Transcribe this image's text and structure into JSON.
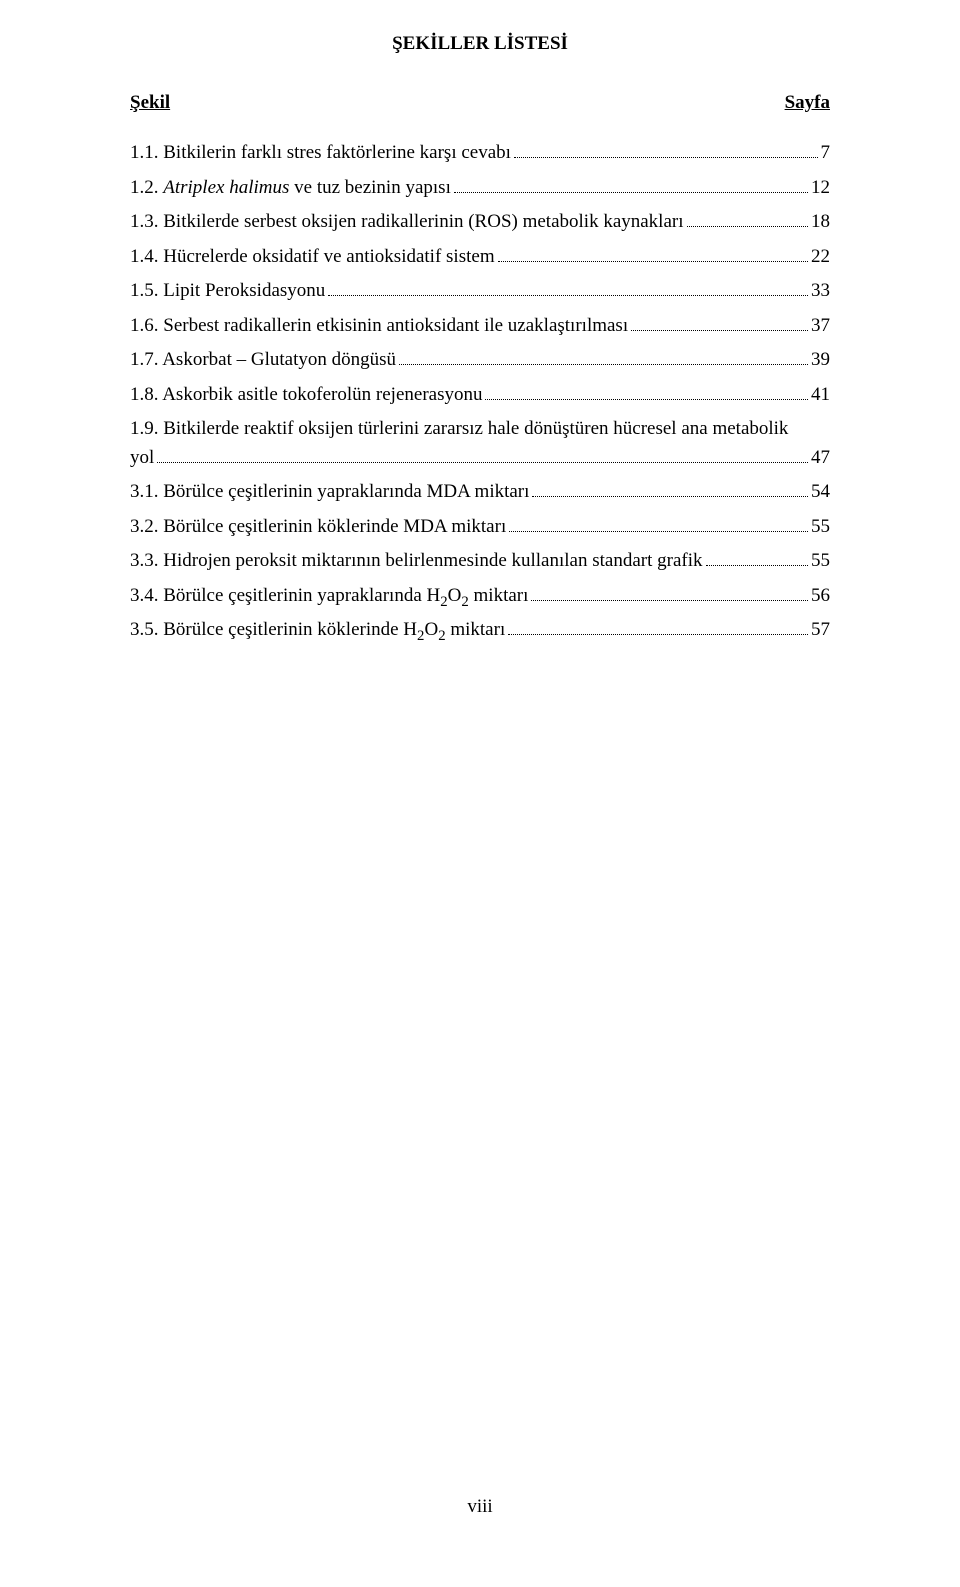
{
  "title": "ŞEKİLLER LİSTESİ",
  "heading_left": "Şekil",
  "heading_right": "Sayfa",
  "folio": "viii",
  "entries": [
    {
      "num": "1.1.",
      "plain_before": "Bitkilerin farklı stres faktörlerine karşı cevabı",
      "page": "7"
    },
    {
      "num": "1.2.",
      "italic": "Atriplex halimus",
      "plain_after": " ve tuz bezinin yapısı",
      "page": "12"
    },
    {
      "num": "1.3.",
      "plain_before": "Bitkilerde serbest oksijen radikallerinin (ROS) metabolik kaynakları",
      "page": "18"
    },
    {
      "num": "1.4.",
      "plain_before": "Hücrelerde oksidatif ve antioksidatif sistem",
      "page": "22"
    },
    {
      "num": "1.5.",
      "plain_before": "Lipit Peroksidasyonu",
      "page": "33"
    },
    {
      "num": "1.6.",
      "plain_before": "Serbest radikallerin etkisinin antioksidant ile uzaklaştırılması",
      "page": "37"
    },
    {
      "num": "1.7.",
      "plain_before": "Askorbat – Glutatyon döngüsü",
      "page": "39"
    },
    {
      "num": "1.8.",
      "plain_before": "Askorbik asitle tokoferolün rejenerasyonu",
      "page": "41"
    },
    {
      "num": "1.9.",
      "plain_before": "Bitkilerde reaktif oksijen türlerini zararsız hale dönüştüren hücresel ana metabolik",
      "wrap_tail": "yol",
      "page": "47"
    },
    {
      "num": "3.1.",
      "plain_before": "Börülce çeşitlerinin yapraklarında MDA miktarı",
      "page": "54"
    },
    {
      "num": "3.2.",
      "plain_before": "Börülce çeşitlerinin köklerinde MDA miktarı",
      "page": "55"
    },
    {
      "num": "3.3.",
      "plain_before": "Hidrojen peroksit miktarının belirlenmesinde kullanılan standart grafik",
      "page": "55"
    },
    {
      "num": "3.4.",
      "plain_before": "Börülce çeşitlerinin yapraklarında H",
      "sub": "2",
      "mid": "O",
      "sub2": "2",
      "plain_after": " miktarı",
      "page": "56"
    },
    {
      "num": "3.5.",
      "plain_before": "Börülce çeşitlerinin köklerinde H",
      "sub": "2",
      "mid": "O",
      "sub2": "2",
      "plain_after": " miktarı",
      "page": "57"
    }
  ]
}
